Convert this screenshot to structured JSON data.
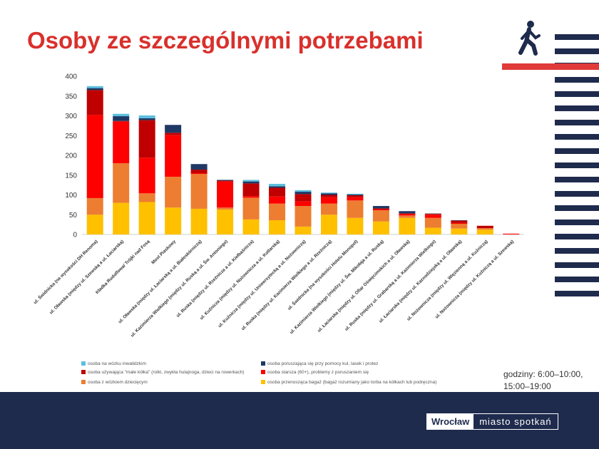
{
  "title": "Osoby ze szczególnymi potrzebami",
  "hours_line1": "godziny: 6:00–10:00,",
  "hours_line2": "15:00–19:00",
  "brand_bold": "Wrocław",
  "brand_light": "miasto spotkań",
  "chart_data": {
    "type": "bar",
    "stacked": true,
    "ylim": [
      0,
      400
    ],
    "yticks": [
      0,
      50,
      100,
      150,
      200,
      250,
      300,
      350,
      400
    ],
    "categories": [
      "ul. Świdnicka (na wysokości DH Renoma)",
      "ul. Oławska (między ul. Szewską a ul. Łaciarską)",
      "Kładka Rudolfowa/ Trójki nad Fosą",
      "Most Piaskowy",
      "ul. Oławska (między ul. Łaciarską a ul. Białoskórniczą)",
      "ul. Kazimierza Wielkiego (między ul. Ruską a ul. Św. Antoniego)",
      "ul. Ruska (między ul. Rzeźnicza a ul. Kiełbaśnicza)",
      "ul. Kuźnicza (między ul. Nożownicza a ul. Kotlarską)",
      "ul. Kuźnicza (między ul. Uniwersytecką a ul. Nożowniczą)",
      "ul. Ruska (między ul. Kazimierza Wielkiego a ul. Rzeźniczą)",
      "ul. Świdnicka (na wysokości Hotelu Monopol)",
      "ul. Kazimierza Wielkiego (między ul. Św. Mikołaja a ul. Ruską)",
      "ul. Łaciarska (między ul. Ofiar Oświęcimskich a ul. Oławską)",
      "ul. Ruska (między ul. Grabarską a ul. Kazimierza Wielkiego)",
      "ul. Łaciarska (między ul. Kaznodziejską a ul. Oławską)",
      "ul. Nożownicza (między ul. Więzienną a ul. Kuźniczą)",
      "ul. Nożownicza (między ul. Kuźniczą a ul. Szewską)"
    ],
    "series": [
      {
        "name": "osoba przenosząca bagaż (bagaż rozumiany jako torba na kółkach lub podręczna)",
        "color": "#ffc000",
        "values": [
          50,
          80,
          82,
          68,
          65,
          63,
          38,
          36,
          20,
          50,
          42,
          33,
          42,
          17,
          15,
          12,
          0
        ]
      },
      {
        "name": "osoba z wózkiem dziecięcym",
        "color": "#ed7d31",
        "values": [
          42,
          100,
          22,
          78,
          88,
          5,
          55,
          42,
          52,
          28,
          44,
          28,
          6,
          25,
          12,
          4,
          0
        ]
      },
      {
        "name": "osoba starsza (60+), problemy z poruszaniem się",
        "color": "#ff0000",
        "values": [
          210,
          105,
          90,
          105,
          2,
          66,
          4,
          18,
          12,
          16,
          8,
          2,
          5,
          8,
          2,
          0,
          2
        ]
      },
      {
        "name": "osoba używająca \"małe kółka\" (rolki, zwykła hulajnoga, dzieci na rowerkach)",
        "color": "#c00000",
        "values": [
          63,
          2,
          95,
          6,
          9,
          2,
          32,
          22,
          18,
          6,
          5,
          3,
          0,
          2,
          6,
          6,
          0
        ]
      },
      {
        "name": "osoba poruszająca się przy pomocy kul, lasek i protez",
        "color": "#203864",
        "values": [
          5,
          12,
          5,
          20,
          14,
          2,
          5,
          4,
          6,
          4,
          2,
          6,
          6,
          1,
          1,
          0,
          0
        ]
      },
      {
        "name": "osoba na wózku inwalidzkim",
        "color": "#5bc0de",
        "values": [
          5,
          6,
          7,
          0,
          0,
          0,
          4,
          6,
          4,
          2,
          2,
          0,
          0,
          0,
          0,
          0,
          0
        ]
      }
    ]
  }
}
